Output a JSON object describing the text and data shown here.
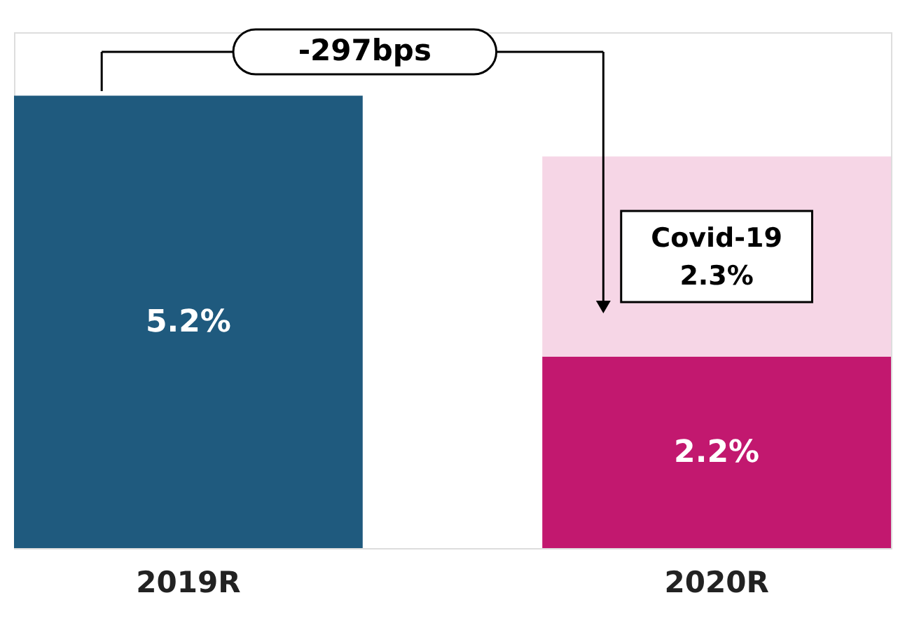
{
  "chart_data": {
    "type": "bar",
    "stacked": true,
    "categories": [
      "2019R",
      "2020R"
    ],
    "series": [
      {
        "colors": [
          "#1f5a7e",
          "#c2186f"
        ],
        "values": [
          5.2,
          2.2
        ],
        "value_labels": [
          "5.2%",
          "2.2%"
        ]
      },
      {
        "name": "Covid-19",
        "color": "#f6d6e6",
        "values": [
          null,
          2.3
        ],
        "value_labels": [
          null,
          "2.3%"
        ]
      }
    ],
    "annotations": [
      "-297bps"
    ]
  }
}
